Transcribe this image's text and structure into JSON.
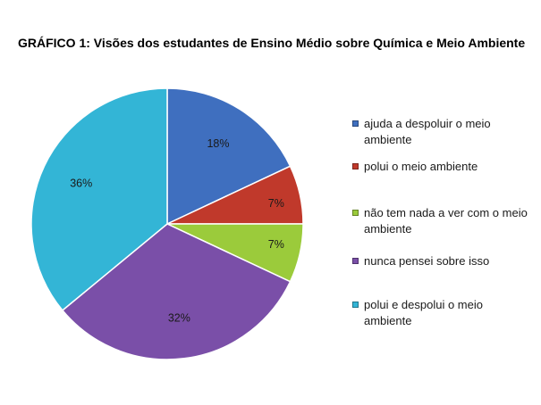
{
  "chart_data": {
    "type": "pie",
    "title": "GRÁFICO 1: Visões dos estudantes de Ensino Médio sobre Química e Meio Ambiente",
    "legend_position": "right",
    "slices": [
      {
        "label": "ajuda a despoluir o meio ambiente",
        "value": 18,
        "data_label": "18%",
        "color": "#3F6FBF"
      },
      {
        "label": "polui o meio ambiente",
        "value": 7,
        "data_label": "7%",
        "color": "#C0392B"
      },
      {
        "label": "não tem nada a ver com o meio ambiente",
        "value": 7,
        "data_label": "7%",
        "color": "#9BCB3B"
      },
      {
        "label": "nunca pensei sobre isso",
        "value": 32,
        "data_label": "32%",
        "color": "#7A4FA8"
      },
      {
        "label": "polui e despolui o meio ambiente",
        "value": 36,
        "data_label": "36%",
        "color": "#33B5D6"
      }
    ]
  }
}
